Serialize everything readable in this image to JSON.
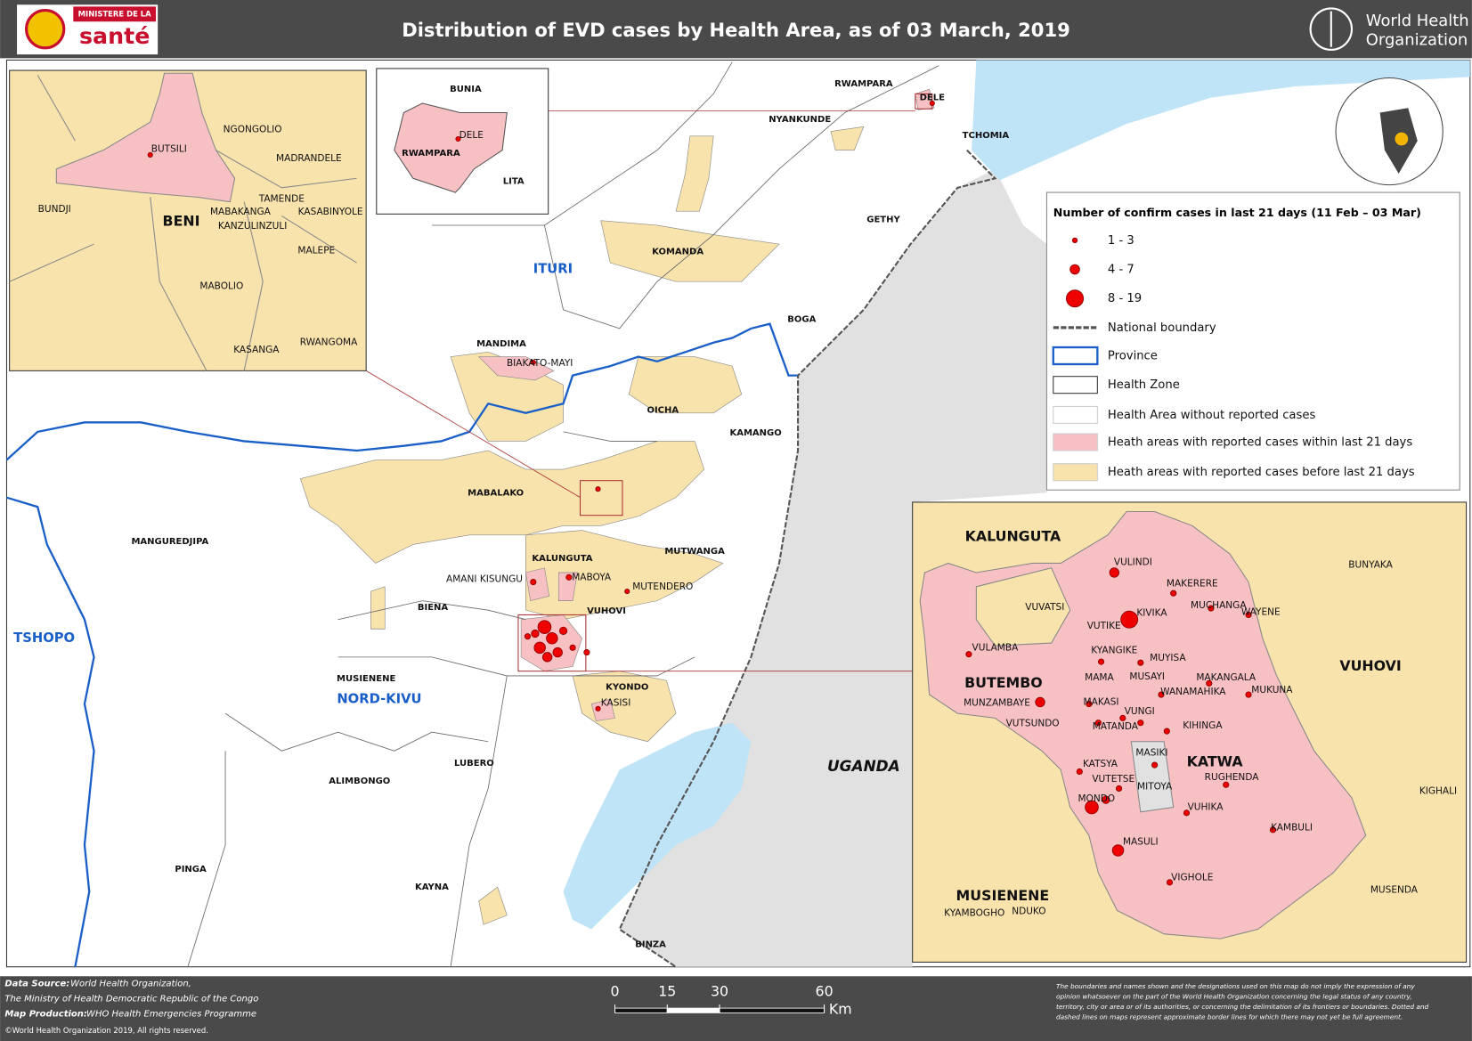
{
  "header": {
    "ministry_line": "MINISTERE DE LA",
    "ministry_name": "santé",
    "title": "Distribution of EVD cases by Health Area, as of 03 March, 2019",
    "who_line1": "World Health",
    "who_line2": "Organization"
  },
  "legend": {
    "title": "Number of confirm cases in last 21 days (11 Feb – 03 Mar)",
    "items": [
      "1 - 3",
      "4 - 7",
      "8 - 19",
      "National boundary",
      "Province",
      "Health Zone",
      "Health Area without reported cases",
      "Heath areas with reported cases within last 21 days",
      "Heath areas with reported cases before last 21 days"
    ]
  },
  "main_map": {
    "labels": [
      "RWAMPARA",
      "DELE",
      "NYANKUNDE",
      "TCHOMIA",
      "GETHY",
      "ITURI",
      "KOMANDA",
      "BOGA",
      "MANDIMA",
      "BIAKATO-MAYI",
      "OICHA",
      "KAMANGO",
      "MABALAKO",
      "MANGUREDJIPA",
      "KALUNGUTA",
      "MUTWANGA",
      "AMANI KISUNGU",
      "MABOYA",
      "MUTENDERO",
      "BIENA",
      "VUHOVI",
      "TSHOPO",
      "MUSIENENE",
      "NORD-KIVU",
      "KYONDO",
      "KASISI",
      "UGANDA",
      "LUBERO",
      "ALIMBONGO",
      "PINGA",
      "KAYNA",
      "BINZA"
    ]
  },
  "inset_beni": {
    "labels": [
      "NGONGOLIO",
      "MADRANDELE",
      "BUTSILI",
      "BUNDJI",
      "TAMENDE",
      "MABAKANGA",
      "KASABINYOLE",
      "BENI",
      "KANZULINZULI",
      "MALEPE",
      "MABOLIO",
      "KASANGA",
      "RWANGOMA"
    ]
  },
  "inset_rwampara": {
    "labels": [
      "BUNIA",
      "DELE",
      "RWAMPARA",
      "LITA"
    ]
  },
  "inset_butembo": {
    "labels": [
      "KALUNGUTA",
      "BUNYAKA",
      "VULINDI",
      "MAKERERE",
      "VUVATSI",
      "MUCHANGA",
      "WAYENE",
      "VUTIKE",
      "KIVIKA",
      "KYANGIKE",
      "VULAMBA",
      "MUYISA",
      "VUHOVI",
      "BUTEMBO",
      "MAMA",
      "MUSAYI",
      "MAKANGALA",
      "MUKUNA",
      "WANAMAHIKA",
      "MUNZAMBAYE",
      "MAKASI",
      "VUNGI",
      "VUTSUNDO",
      "MATANDA",
      "KIHINGA",
      "MASIKI",
      "KATWA",
      "KATSYA",
      "VUTETSE",
      "RUGHENDA",
      "MITOYA",
      "KIGHALI",
      "MONDO",
      "VUHIKA",
      "KAMBULI",
      "MASULI",
      "VIGHOLE",
      "MUSIENENE",
      "MUSENDA",
      "KYAMBOGHO",
      "NDUKO"
    ]
  },
  "scale_bar": {
    "ticks": [
      0,
      15,
      30,
      60
    ],
    "unit": "Km"
  },
  "footer": {
    "data_source_label": "Data Source:",
    "data_source": "World Health Organization,",
    "ministry": "The Ministry of Health Democratic Republic of the Congo",
    "production_label": "Map Production:",
    "production": "WHO Health Emergencies Programme",
    "copyright": "©World Health Organization 2019, All rights reserved.",
    "disclaimer": [
      "The boundaries and names shown and the designations used on this map do not imply the expression of any",
      "opinion whatsoever on the part of the World Health Organization concerning the legal status of any country,",
      "territory, city or area or of its authorities, or concerning the delimitation of its frontiers or boundaries. Dotted and",
      "dashed lines on maps represent approximate border lines for which there may not yet be full agreement."
    ]
  }
}
